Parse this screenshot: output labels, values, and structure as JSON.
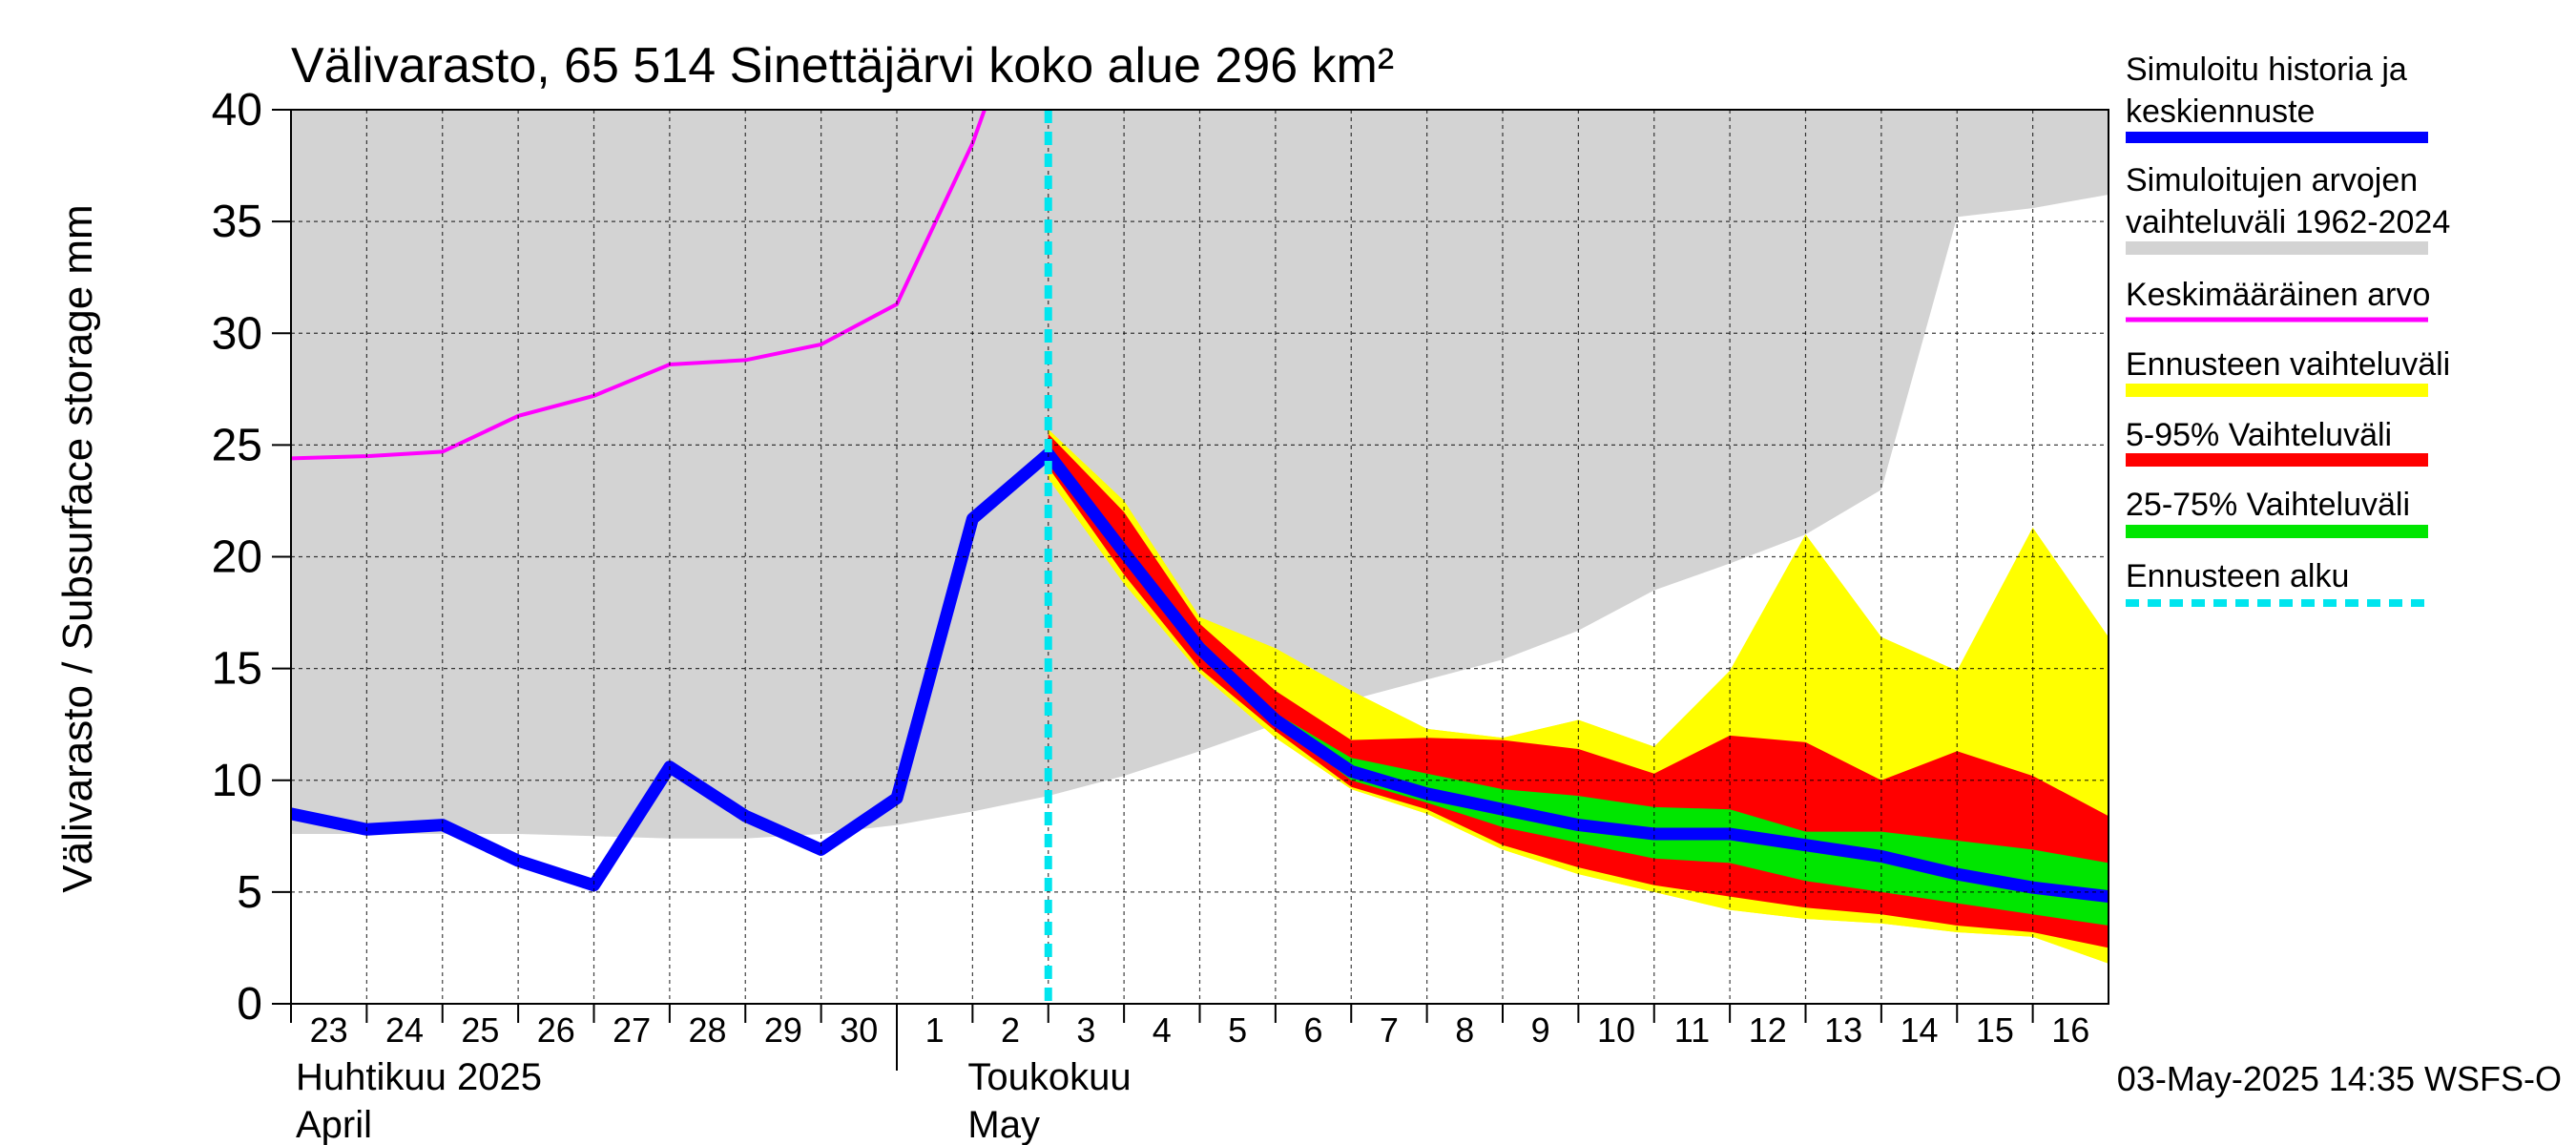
{
  "chart_data": {
    "type": "area",
    "title": "Välivarasto, 65 514 Sinettäjärvi koko alue 296 km²",
    "ylabel": "Välivarasto / Subsurface storage  mm",
    "ylim": [
      0,
      40
    ],
    "yticks": [
      0,
      5,
      10,
      15,
      20,
      25,
      30,
      35,
      40
    ],
    "grid": true,
    "x": [
      "2025-04-23",
      "2025-04-24",
      "2025-04-25",
      "2025-04-26",
      "2025-04-27",
      "2025-04-28",
      "2025-04-29",
      "2025-04-30",
      "2025-05-01",
      "2025-05-02",
      "2025-05-03",
      "2025-05-04",
      "2025-05-05",
      "2025-05-06",
      "2025-05-07",
      "2025-05-08",
      "2025-05-09",
      "2025-05-10",
      "2025-05-11",
      "2025-05-12",
      "2025-05-13",
      "2025-05-14",
      "2025-05-15",
      "2025-05-16",
      "2025-05-17"
    ],
    "xtick_labels": [
      "23",
      "24",
      "25",
      "26",
      "27",
      "28",
      "29",
      "30",
      "1",
      "2",
      "3",
      "4",
      "5",
      "6",
      "7",
      "8",
      "9",
      "10",
      "11",
      "12",
      "13",
      "14",
      "15",
      "16"
    ],
    "month_labels": [
      {
        "fi": "Huhtikuu  2025",
        "en": "April"
      },
      {
        "fi": "Toukokuu",
        "en": "May"
      }
    ],
    "forecast_start": "2025-05-03",
    "legend_position": "right",
    "series": [
      {
        "name": "Simuloitujen arvojen vaihteluväli 1962-2024",
        "color": "#d3d3d3",
        "lower": [
          7.6,
          7.6,
          7.6,
          7.6,
          7.5,
          7.4,
          7.4,
          7.6,
          8.0,
          8.6,
          9.3,
          10.2,
          11.3,
          12.5,
          13.6,
          14.5,
          15.4,
          16.7,
          18.5,
          19.7,
          21.0,
          23.0,
          35.2,
          35.6,
          36.2
        ],
        "upper": [
          40,
          40,
          40,
          40,
          40,
          40,
          40,
          40,
          40,
          40,
          40,
          40,
          40,
          40,
          40,
          40,
          40,
          40,
          40,
          40,
          40,
          40,
          40,
          40,
          40
        ]
      },
      {
        "name": "Keskimääräinen arvo",
        "color": "#ff00ff",
        "values": [
          24.4,
          24.5,
          24.7,
          26.3,
          27.2,
          28.6,
          28.8,
          29.5,
          31.3,
          38.5,
          48,
          null,
          null,
          null,
          null,
          null,
          null,
          null,
          null,
          null,
          null,
          null,
          null,
          null,
          null
        ]
      },
      {
        "name": "Ennusteen vaihteluväli",
        "color": "#ffff00",
        "lower": [
          null,
          null,
          null,
          null,
          null,
          null,
          null,
          null,
          null,
          null,
          23.5,
          18.8,
          14.8,
          11.9,
          9.6,
          8.5,
          6.9,
          5.8,
          5.0,
          4.2,
          3.8,
          3.6,
          3.2,
          3.0,
          1.8
        ],
        "upper": [
          null,
          null,
          null,
          null,
          null,
          null,
          null,
          null,
          null,
          null,
          25.7,
          22.5,
          17.3,
          15.9,
          14.0,
          12.3,
          11.9,
          12.7,
          11.5,
          14.9,
          21.0,
          16.4,
          14.9,
          21.3,
          16.4
        ]
      },
      {
        "name": "5-95% Vaihteluväli",
        "color": "#ff0000",
        "lower": [
          null,
          null,
          null,
          null,
          null,
          null,
          null,
          null,
          null,
          null,
          24.0,
          19.2,
          15.0,
          12.2,
          9.7,
          8.7,
          7.1,
          6.1,
          5.3,
          4.8,
          4.3,
          4.0,
          3.5,
          3.2,
          2.5
        ],
        "upper": [
          null,
          null,
          null,
          null,
          null,
          null,
          null,
          null,
          null,
          null,
          25.5,
          22.0,
          17.0,
          14.0,
          11.8,
          11.9,
          11.8,
          11.4,
          10.3,
          12.0,
          11.7,
          10.0,
          11.3,
          10.2,
          8.4
        ]
      },
      {
        "name": "25-75% Vaihteluväli",
        "color": "#00e600",
        "lower": [
          null,
          null,
          null,
          null,
          null,
          null,
          null,
          null,
          null,
          null,
          24.4,
          20.0,
          15.6,
          12.6,
          10.0,
          9.0,
          7.9,
          7.2,
          6.5,
          6.3,
          5.5,
          5.0,
          4.5,
          4.0,
          3.5
        ],
        "upper": [
          null,
          null,
          null,
          null,
          null,
          null,
          null,
          null,
          null,
          null,
          24.9,
          20.6,
          16.3,
          13.0,
          11.0,
          10.3,
          9.6,
          9.3,
          8.8,
          8.7,
          7.7,
          7.7,
          7.3,
          6.9,
          6.3
        ]
      },
      {
        "name": "Simuloitu historia ja keskiennuste",
        "color": "#0000ff",
        "values": [
          8.5,
          7.8,
          8.0,
          6.4,
          5.3,
          10.6,
          8.4,
          6.9,
          9.2,
          21.7,
          24.6,
          20.2,
          15.9,
          12.7,
          10.4,
          9.4,
          8.7,
          8.0,
          7.6,
          7.6,
          7.1,
          6.6,
          5.8,
          5.2,
          4.8
        ]
      },
      {
        "name": "Ennusteen alku",
        "color": "#00e5ee",
        "dashed": true,
        "x": "2025-05-03"
      }
    ],
    "legend": [
      {
        "label": "Simuloitu historia ja keskiennuste",
        "color": "#0000ff",
        "style": "line"
      },
      {
        "label": "Simuloitujen arvojen vaihteluväli 1962-2024",
        "color": "#d3d3d3",
        "style": "line"
      },
      {
        "label": "Keskimääräinen arvo",
        "color": "#ff00ff",
        "style": "thin"
      },
      {
        "label": "Ennusteen vaihteluväli",
        "color": "#ffff00",
        "style": "line"
      },
      {
        "label": "5-95% Vaihteluväli",
        "color": "#ff0000",
        "style": "line"
      },
      {
        "label": "25-75% Vaihteluväli",
        "color": "#00e600",
        "style": "line"
      },
      {
        "label": "Ennusteen alku",
        "color": "#00e5ee",
        "style": "dashed"
      }
    ]
  },
  "footer": {
    "timestamp": "03-May-2025 14:35 WSFS-O"
  }
}
